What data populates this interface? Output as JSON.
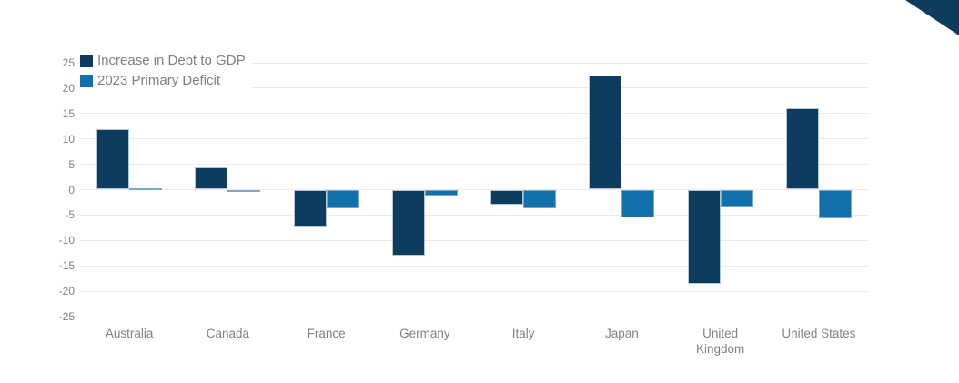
{
  "chart_data": {
    "type": "bar",
    "title": "",
    "xlabel": "",
    "ylabel": "",
    "categories": [
      "Australia",
      "Canada",
      "France",
      "Germany",
      "Italy",
      "Japan",
      "United Kingdom",
      "United States"
    ],
    "series": [
      {
        "name": "Increase in Debt to GDP",
        "color": "#0d3c5e",
        "border_color": "#b3c6d4",
        "values": [
          12,
          4.4,
          -7.3,
          -13,
          -2.9,
          22.5,
          -18.6,
          16
        ]
      },
      {
        "name": "2023 Primary Deficit",
        "color": "#1271ac",
        "border_color": "#78a7cb",
        "values": [
          0.3,
          -0.1,
          -3.6,
          -1.2,
          -3.6,
          -5.5,
          -3.4,
          -5.7
        ]
      }
    ],
    "ylim": [
      -25,
      25
    ],
    "yticks": [
      25,
      20,
      15,
      10,
      5,
      0,
      -5,
      -10,
      -15,
      -20,
      -25
    ],
    "grid": true,
    "legend_position": "top-left"
  },
  "style": {
    "background": "#ffffff",
    "gridline_color": "#eceaea",
    "bottom_axis_color": "#d6d2d2",
    "tick_text_color": "#808080",
    "category_text_color": "#808080",
    "legend_text_color": "#7f7f7f",
    "corner_triangle_color": "#0d3c5e"
  }
}
